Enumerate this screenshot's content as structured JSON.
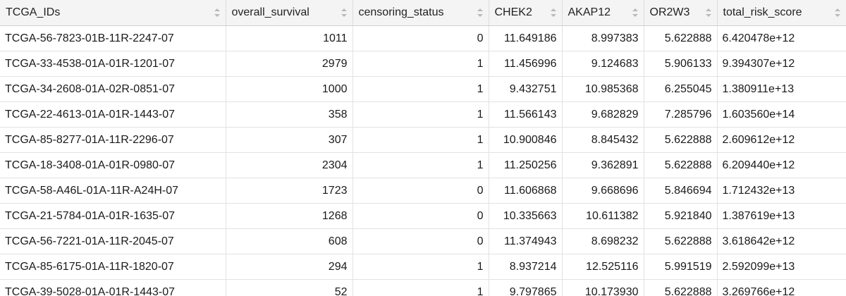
{
  "table": {
    "columns": [
      {
        "label": "TCGA_IDs",
        "align": "left"
      },
      {
        "label": "overall_survival",
        "align": "right"
      },
      {
        "label": "censoring_status",
        "align": "right"
      },
      {
        "label": "CHEK2",
        "align": "right"
      },
      {
        "label": "AKAP12",
        "align": "right"
      },
      {
        "label": "OR2W3",
        "align": "right"
      },
      {
        "label": "total_risk_score",
        "align": "left"
      }
    ],
    "rows": [
      [
        "TCGA-56-7823-01B-11R-2247-07",
        "1011",
        "0",
        "11.649186",
        "8.997383",
        "5.622888",
        "6.420478e+12"
      ],
      [
        "TCGA-33-4538-01A-01R-1201-07",
        "2979",
        "1",
        "11.456996",
        "9.124683",
        "5.906133",
        "9.394307e+12"
      ],
      [
        "TCGA-34-2608-01A-02R-0851-07",
        "1000",
        "1",
        "9.432751",
        "10.985368",
        "6.255045",
        "1.380911e+13"
      ],
      [
        "TCGA-22-4613-01A-01R-1443-07",
        "358",
        "1",
        "11.566143",
        "9.682829",
        "7.285796",
        "1.603560e+14"
      ],
      [
        "TCGA-85-8277-01A-11R-2296-07",
        "307",
        "1",
        "10.900846",
        "8.845432",
        "5.622888",
        "2.609612e+12"
      ],
      [
        "TCGA-18-3408-01A-01R-0980-07",
        "2304",
        "1",
        "11.250256",
        "9.362891",
        "5.622888",
        "6.209440e+12"
      ],
      [
        "TCGA-58-A46L-01A-11R-A24H-07",
        "1723",
        "0",
        "11.606868",
        "9.668696",
        "5.846694",
        "1.712432e+13"
      ],
      [
        "TCGA-21-5784-01A-01R-1635-07",
        "1268",
        "0",
        "10.335663",
        "10.611382",
        "5.921840",
        "1.387619e+13"
      ],
      [
        "TCGA-56-7221-01A-11R-2045-07",
        "608",
        "0",
        "11.374943",
        "8.698232",
        "5.622888",
        "3.618642e+12"
      ],
      [
        "TCGA-85-6175-01A-11R-1820-07",
        "294",
        "1",
        "8.937214",
        "12.525116",
        "5.991519",
        "2.592099e+13"
      ],
      [
        "TCGA-39-5028-01A-01R-1443-07",
        "52",
        "1",
        "9.797865",
        "10.173930",
        "5.622888",
        "3.269766e+12"
      ]
    ]
  }
}
